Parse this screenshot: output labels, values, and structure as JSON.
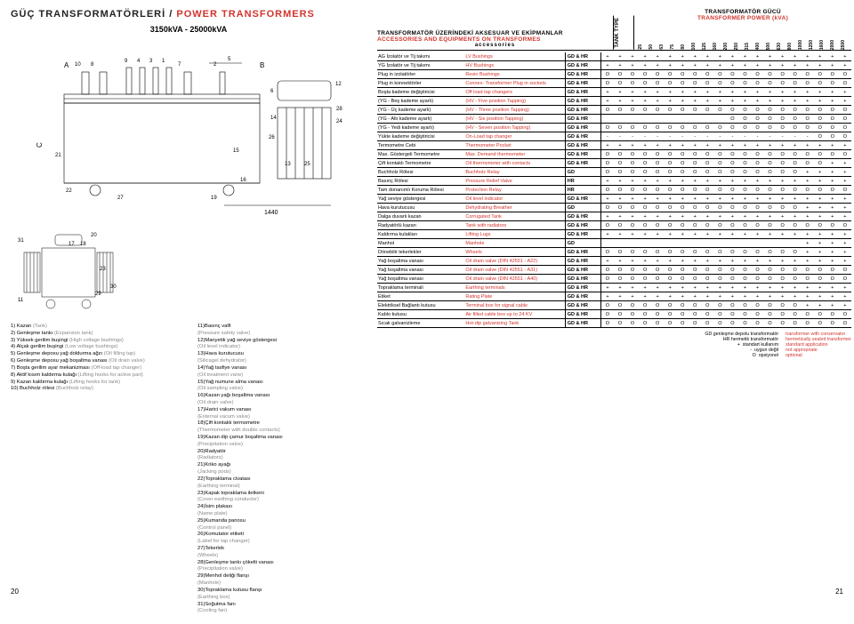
{
  "title": {
    "tr": "GÜÇ TRANSFORMATÖRLERİ",
    "en": "POWER TRANSFORMERS",
    "range": "3150kVA - 25000kVA"
  },
  "diagram_labels": {
    "a": "A",
    "b": "B",
    "c": "C",
    "t1": "10",
    "t2": "8",
    "t3": "9",
    "t4": "4",
    "t5": "3",
    "t6": "1",
    "t7": "7",
    "t8": "2",
    "t9": "5",
    "t10": "12",
    "t11": "6",
    "t12": "14",
    "t13": "24",
    "t14": "28",
    "t15": "26",
    "t16": "21",
    "t17": "15",
    "t18": "13",
    "t19": "25",
    "t20": "16",
    "t21": "22",
    "t22": "27",
    "t23": "19",
    "t24": "1440",
    "s1": "31",
    "s2": "20",
    "s3": "18",
    "s4": "17",
    "s5": "23",
    "s6": "11",
    "s7": "29",
    "s8": "30"
  },
  "legend_left": [
    {
      "n": "1",
      "tr": "Kazan",
      "en": "(Tank)"
    },
    {
      "n": "2",
      "tr": "Genleşme tankı",
      "en": "(Expansion tank)"
    },
    {
      "n": "3",
      "tr": "Yüksek gerilim buşingi",
      "en": "(High voltage bushings)"
    },
    {
      "n": "4",
      "tr": "Alçak gerilim buşingi",
      "en": "(Low voltage bushings)"
    },
    {
      "n": "5",
      "tr": "Genleşme deposu yağ doldurma ağzı",
      "en": "(Oil filling tap)"
    },
    {
      "n": "6",
      "tr": "Genleşme deposu yağ boşaltma vanası",
      "en": "(Oil drain valve)"
    },
    {
      "n": "7",
      "tr": "Boşta gerilim ayar mekanizması",
      "en": "(Off-load tap changer)"
    },
    {
      "n": "8",
      "tr": "Aktif kısım kaldırma kulağı",
      "en": "(Lifting hooks for active part)"
    },
    {
      "n": "9",
      "tr": "Kazan kaldırma kulağı",
      "en": "(Lifting hooks for tank)"
    },
    {
      "n": "10",
      "tr": "Buchholz rölesi",
      "en": "(Buchholz relay)"
    }
  ],
  "legend_right": [
    {
      "n": "11",
      "tr": "Basınç valfi",
      "en": "(Pressure safety valve)"
    },
    {
      "n": "12",
      "tr": "Manyetik yağ seviye göstergesi",
      "en": "(Oil level indicator)"
    },
    {
      "n": "13",
      "tr": "Hava kurutucusu",
      "en": "(Silicagel dehydrator)"
    },
    {
      "n": "14",
      "tr": "Yağ tasfiye vanası",
      "en": "(Oil treatment vane)"
    },
    {
      "n": "15",
      "tr": "Yağ numune alma vanası",
      "en": "(Oil sampling valve)"
    },
    {
      "n": "16",
      "tr": "Kazan yağı boşaltma vanası",
      "en": "(Oil drain valve)"
    },
    {
      "n": "17",
      "tr": "Harici vakum vanası",
      "en": "(External vacum valve)"
    },
    {
      "n": "18",
      "tr": "Çift kontaklı termometre",
      "en": "(Thermometer with double contacts)"
    },
    {
      "n": "19",
      "tr": "Kazan dip çamur boşaltma vanası",
      "en": "(Precipitation valve)"
    },
    {
      "n": "20",
      "tr": "Radyatör",
      "en": "(Radiators)"
    },
    {
      "n": "21",
      "tr": "Kriko ayağı",
      "en": "(Jacking pods)"
    },
    {
      "n": "22",
      "tr": "Topraklama civatası",
      "en": "(Earthing terminal)"
    },
    {
      "n": "23",
      "tr": "Kapak topraklama iletkeni",
      "en": "(Cover earthing conductor)"
    },
    {
      "n": "24",
      "tr": "İsim plakası",
      "en": "(Name plate)"
    },
    {
      "n": "25",
      "tr": "Kumanda panosu",
      "en": "(Control panel)"
    },
    {
      "n": "26",
      "tr": "Komutator etiketi",
      "en": "(Label for tap changer)"
    },
    {
      "n": "27",
      "tr": "Tekerlek",
      "en": "(Wheels)"
    },
    {
      "n": "28",
      "tr": "Genleşme tankı çökelti vanası",
      "en": "(Precipitation valve)"
    },
    {
      "n": "29",
      "tr": "Menhol deliği flanşı",
      "en": "(Manhole)"
    },
    {
      "n": "30",
      "tr": "Topraklama kutusu flanşı",
      "en": "(Earthing box)"
    },
    {
      "n": "31",
      "tr": "Soğutma fanı",
      "en": "(Cooling fan)"
    }
  ],
  "acc_header": {
    "tr": "TRANSFORMATÖR ÜZERİNDEKİ AKSESUAR VE EKİPMANLAR",
    "en": "ACCESSORIES AND EQUIPMENTS ON TRANSFORMES",
    "acc": "accessories",
    "tank": "TANK TYPE",
    "power_tr": "TRANSFORMATÖR GÜCÜ",
    "power_en": "TRANSFORMER POWER (kVA)"
  },
  "kva": [
    "25",
    "50",
    "63",
    "75",
    "80",
    "100",
    "125",
    "160",
    "200",
    "250",
    "315",
    "400",
    "500",
    "630",
    "800",
    "1000",
    "1250",
    "1600",
    "2000",
    "2500"
  ],
  "rows": [
    {
      "tr": "AG İzolatör ve Tij takımı",
      "en": "LV Bushings",
      "type": "GD & HR",
      "sym": "+"
    },
    {
      "tr": "YG İzolatör ve Tij takımı",
      "en": "HV Bushings",
      "type": "GD & HR",
      "sym": "+"
    },
    {
      "tr": "Plug in izolatörler",
      "en": "Resin Bushings",
      "type": "GD & HR",
      "sym": "O"
    },
    {
      "tr": "Plug in konnektörler",
      "en": "Connex- Transformer Plug in sockets",
      "type": "GD & HR",
      "sym": "O"
    },
    {
      "tr": "Boşta kademe değiştiricisi",
      "en": "Off load tap changers",
      "type": "GD & HR",
      "sym": "+"
    },
    {
      "tr": "(YG - Beş kademe ayarlı)",
      "en": "(HV - Five position Tapping)",
      "type": "GD & HR",
      "sym": "+"
    },
    {
      "tr": "(YG - Üç kademe ayarlı)",
      "en": "(HV - Three position Tapping)",
      "type": "GD & HR",
      "sym": "O"
    },
    {
      "tr": "(YG - Altı kademe ayarlı)",
      "en": "(HV - Six position Tapping)",
      "type": "GD & HR",
      "sym": "",
      "last": "O",
      "lastN": 10
    },
    {
      "tr": "(YG - Yedi kademe ayarlı)",
      "en": "(HV - Seven position Tapping)",
      "type": "GD & HR",
      "sym": "O"
    },
    {
      "tr": "Yükte kademe değiştiricisi",
      "en": "On-Load tap changer",
      "type": "GD & HR",
      "sym": "-",
      "last": "O",
      "lastN": 3
    },
    {
      "tr": "Termometre Cebi",
      "en": "Thermometer Pocket",
      "type": "GD & HR",
      "sym": "+"
    },
    {
      "tr": "Max. Göstergeli Termometre",
      "en": "Max. Demand thermometer",
      "type": "GD & HR",
      "sym": "O"
    },
    {
      "tr": "Çift kontaklı Termometre",
      "en": "Oil thermometer with contacts",
      "type": "GD & HR",
      "sym": "O",
      "last": "+",
      "lastN": 2
    },
    {
      "tr": "Buchholz Rölesi",
      "en": "Buchholz Relay",
      "type": "GD",
      "sym": "O",
      "last": "+",
      "lastN": 4
    },
    {
      "tr": "Basınç Rölesi",
      "en": "Pressure Relief Valve",
      "type": "HR",
      "sym": "+"
    },
    {
      "tr": "Tam donanımlı Koruma Rölesi",
      "en": "Protection Relay",
      "type": "HR",
      "sym": "O"
    },
    {
      "tr": "Yağ seviye göstergesi",
      "en": "Oil level indicator",
      "type": "GD & HR",
      "sym": "+"
    },
    {
      "tr": "Hava kurutucusu",
      "en": "Dehydrating Breather",
      "type": "GD",
      "sym": "O",
      "last": "+",
      "lastN": 4
    },
    {
      "tr": "Dalga duvarlı kazan",
      "en": "Corrugated Tank",
      "type": "GD & HR",
      "sym": "+"
    },
    {
      "tr": "Radyatörlü kazan",
      "en": "Tank with radiators",
      "type": "GD & HR",
      "sym": "O"
    },
    {
      "tr": "Kaldırma kulakları",
      "en": "Lifting Lugs",
      "type": "GD & HR",
      "sym": "+"
    },
    {
      "tr": "Manhol",
      "en": "Manhole",
      "type": "GD",
      "sym": "",
      "last": "+",
      "lastN": 4
    },
    {
      "tr": "Dönebilir tekerlekler",
      "en": "Wheels",
      "type": "GD & HR",
      "sym": "O",
      "last": "+",
      "lastN": 4
    },
    {
      "tr": "Yağ boşaltma vanası",
      "en": "Oil drain valve (DIN 42551 - A22)",
      "type": "GD & HR",
      "sym": "+"
    },
    {
      "tr": "Yağ boşaltma vanası",
      "en": "Oil drain valve (DIN 42551 - A31)",
      "type": "GD & HR",
      "sym": "O"
    },
    {
      "tr": "Yağ boşaltma vanası",
      "en": "Oil drain valve (DIN 42551 - A40)",
      "type": "GD & HR",
      "sym": "O"
    },
    {
      "tr": "Topraklama terminali",
      "en": "Earthing terminals",
      "type": "GD & HR",
      "sym": "+"
    },
    {
      "tr": "Etiket",
      "en": "Rating Plate",
      "type": "GD & HR",
      "sym": "+"
    },
    {
      "tr": "Elektriksel Bağlantı kutusu",
      "en": "Terminal box for signal cable",
      "type": "GD & HR",
      "sym": "O",
      "last": "+",
      "lastN": 4
    },
    {
      "tr": "Kablo kutusu",
      "en": "Air filled cable box up to 24 KV",
      "type": "GD & HR",
      "sym": "O"
    },
    {
      "tr": "Sıcak galvanizleme",
      "en": "Hot-dip galvanizing Tank",
      "type": "GD & HR",
      "sym": "O"
    }
  ],
  "footer": {
    "gd_tr": "GD genleşme depolu transformatör",
    "gd_en": "transformer with conservator",
    "hr_tr": "HR hermetik transformatör",
    "hr_en": "hermetically sealed transformer",
    "std_tr": "standart kullanım",
    "std_en": "standard application",
    "na_tr": "uygun değil",
    "na_en": "not appropriate",
    "opt_tr": "opsiyonel",
    "opt_en": "optional",
    "plus": "+",
    "dash": "-",
    "o": "O"
  },
  "page_left": "20",
  "page_right": "21"
}
